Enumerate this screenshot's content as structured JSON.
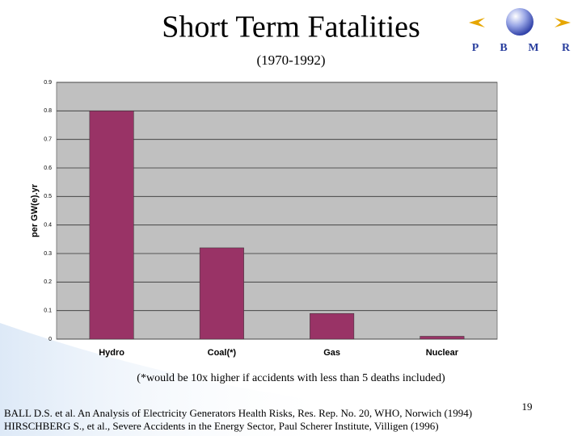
{
  "chart_data": {
    "type": "bar",
    "title": "Short Term Fatalities",
    "subtitle": "(1970-1992)",
    "y_label": "per GW(e).yr",
    "categories": [
      "Hydro",
      "Coal(*)",
      "Gas",
      "Nuclear"
    ],
    "values": [
      0.8,
      0.32,
      0.09,
      0.01
    ],
    "color": "#993366",
    "ylim": [
      0,
      0.9
    ],
    "yticks": [
      0,
      0.1,
      0.2,
      0.3,
      0.4,
      0.5,
      0.6,
      0.7,
      0.8,
      0.9
    ],
    "grid": true
  },
  "note": "(*would be 10x higher if accidents with less than 5 deaths included)",
  "references": [
    "BALL D.S. et al. An Analysis of Electricity Generators Health Risks, Res. Rep. No. 20, WHO, Norwich (1994)",
    "HIRSCHBERG S., et al., Severe Accidents in the Energy Sector, Paul Scherer Institute, Villigen (1996)"
  ],
  "page_number": 19,
  "logo": {
    "letters": [
      "P",
      "B",
      "M",
      "R"
    ]
  }
}
